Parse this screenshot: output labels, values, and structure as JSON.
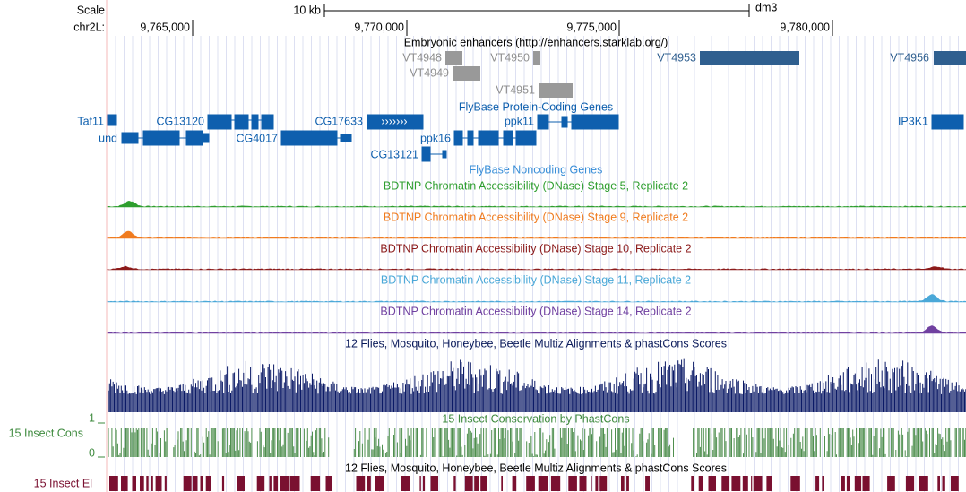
{
  "scale": {
    "label": "Scale",
    "bar": "10 kb",
    "assembly": "dm3"
  },
  "position": {
    "chrom": "chr2L:",
    "ticks": [
      "9,765,000",
      "9,770,000",
      "9,775,000",
      "9,780,000"
    ]
  },
  "enhancers": {
    "title": "Embryonic enhancers (http://enhancers.starklab.org/)",
    "items": [
      "VT4948",
      "VT4949",
      "VT4950",
      "VT4951",
      "VT4953",
      "VT4956"
    ]
  },
  "genes": {
    "title": "FlyBase Protein-Coding Genes",
    "items": [
      "Taf11",
      "und",
      "CG13120",
      "CG4017",
      "CG17633",
      "ppk16",
      "ppk11",
      "CG13121",
      "IP3K1"
    ]
  },
  "noncoding": {
    "title": "FlyBase Noncoding Genes"
  },
  "tracks": [
    "BDTNP Chromatin Accessibility (DNase) Stage 5, Replicate 2",
    "BDTNP Chromatin Accessibility (DNase) Stage 9, Replicate 2",
    "BDTNP Chromatin Accessibility (DNase) Stage 10, Replicate 2",
    "BDTNP Chromatin Accessibility (DNase) Stage 11, Replicate 2",
    "BDTNP Chromatin Accessibility (DNase) Stage 14, Replicate 2"
  ],
  "multiz": {
    "title": "12 Flies, Mosquito, Honeybee, Beetle Multiz Alignments & phastCons Scores"
  },
  "cons": {
    "label": "15 Insect Cons",
    "title": "15 Insect Conservation by PhastCons",
    "max": "1",
    "min": "0"
  },
  "elements": {
    "label": "15 Insect El",
    "title": "12 Flies, Mosquito, Honeybee, Beetle Multiz Alignments & phastCons Scores"
  }
}
